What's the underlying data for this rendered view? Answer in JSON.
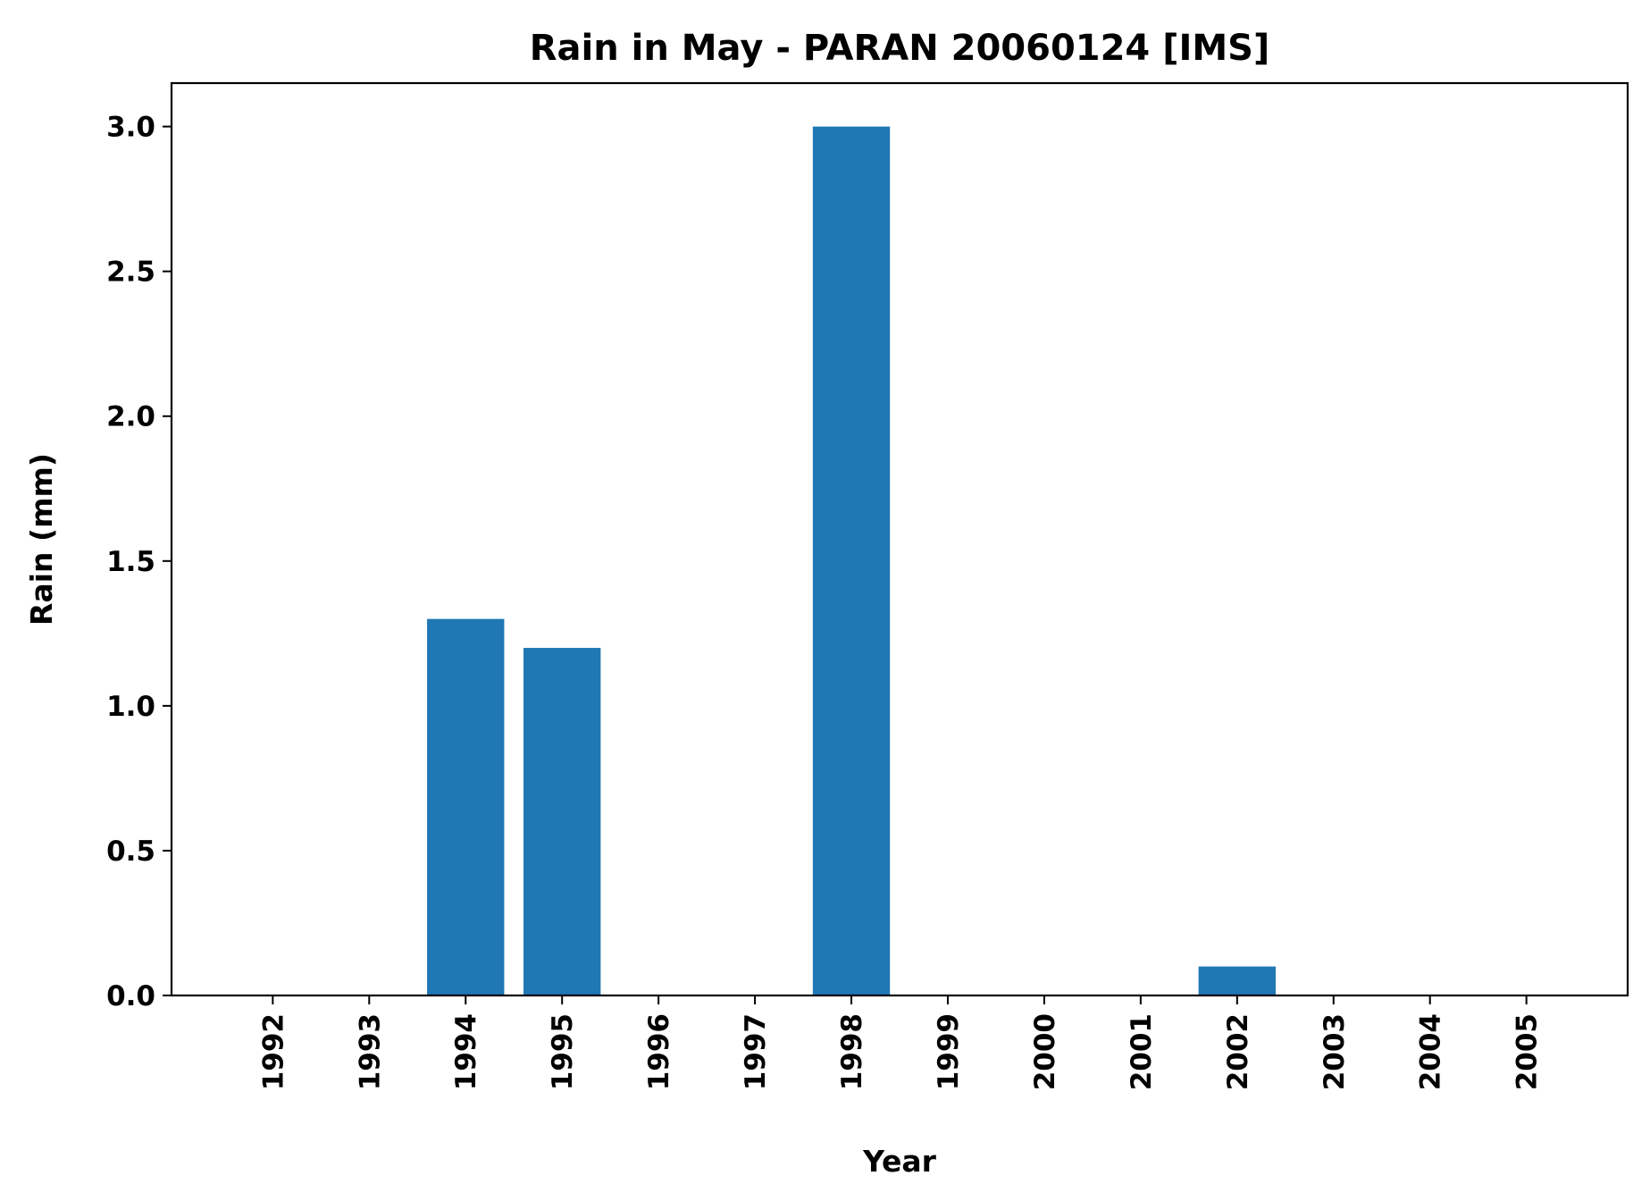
{
  "chart_data": {
    "type": "bar",
    "title": "Rain in May - PARAN 20060124 [IMS]",
    "xlabel": "Year",
    "ylabel": "Rain (mm)",
    "categories": [
      "1992",
      "1993",
      "1994",
      "1995",
      "1996",
      "1997",
      "1998",
      "1999",
      "2000",
      "2001",
      "2002",
      "2003",
      "2004",
      "2005"
    ],
    "values": [
      0,
      0,
      1.3,
      1.2,
      0,
      0,
      3.0,
      0,
      0,
      0,
      0.1,
      0,
      0,
      0
    ],
    "ylim": [
      0,
      3.15
    ],
    "yticks": [
      "0.0",
      "0.5",
      "1.0",
      "1.5",
      "2.0",
      "2.5",
      "3.0"
    ],
    "grid": false,
    "legend": "none",
    "bar_color": "#1f77b4"
  }
}
